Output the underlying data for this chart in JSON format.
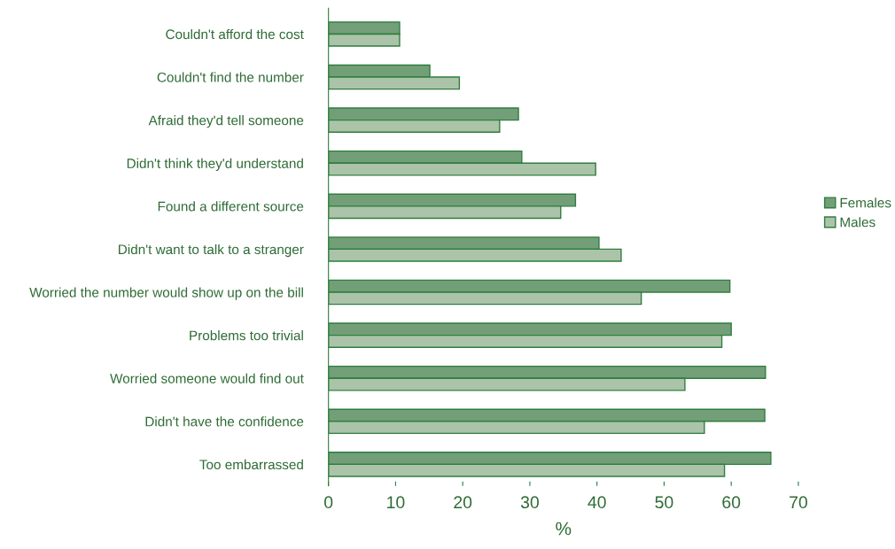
{
  "chart_data": {
    "type": "bar",
    "orientation": "horizontal",
    "xlabel": "%",
    "categories": [
      "Couldn't afford the cost",
      "Couldn't find the number",
      "Afraid they'd tell someone",
      "Didn't think they'd understand",
      "Found a different source",
      "Didn't want to talk to a stranger",
      "Worried the number would show up on the bill",
      "Problems too trivial",
      "Worried someone would find out",
      "Didn't have the confidence",
      "Too embarrassed"
    ],
    "series": [
      {
        "name": "Females",
        "color": "#739f78",
        "values": [
          10.6,
          15.1,
          28.3,
          28.8,
          36.8,
          40.3,
          59.8,
          60.0,
          65.1,
          65.0,
          65.9
        ]
      },
      {
        "name": "Males",
        "color": "#abc4a9",
        "values": [
          10.6,
          19.5,
          25.5,
          39.8,
          34.6,
          43.6,
          46.6,
          58.6,
          53.1,
          56.0,
          59.0
        ]
      }
    ],
    "xlim": [
      0,
      70
    ],
    "xticks": [
      0,
      10,
      20,
      30,
      40,
      50,
      60,
      70
    ],
    "grid": false,
    "legend": "right"
  }
}
